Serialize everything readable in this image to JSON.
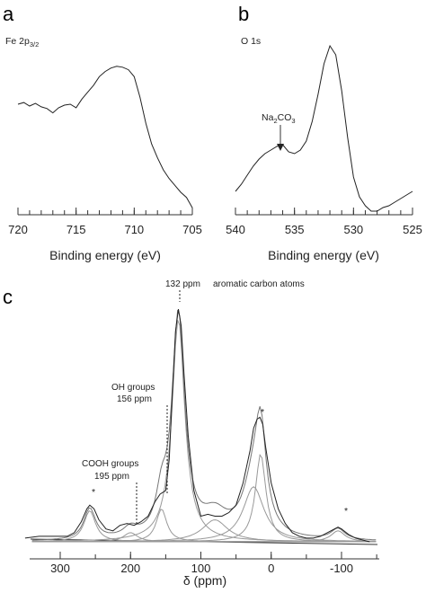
{
  "chart_data": [
    {
      "panel": "a",
      "type": "line",
      "label": "Fe 2p",
      "label_sub": "3/2",
      "xlabel": "Binding energy (eV)",
      "xlim": [
        720,
        705
      ],
      "x_ticks": [
        720,
        715,
        710,
        705
      ],
      "series": [
        {
          "x": [
            720,
            719.5,
            719,
            718.5,
            718,
            717.5,
            717,
            716.5,
            716,
            715.5,
            715,
            714.5,
            714,
            713.5,
            713,
            712.5,
            712,
            711.5,
            711,
            710.5,
            710,
            709.5,
            709,
            708.5,
            708,
            707.5,
            707,
            706.5,
            706,
            705.5,
            705
          ],
          "y": [
            63,
            64,
            62,
            63.5,
            61.5,
            60.5,
            58,
            61,
            62.5,
            63,
            61,
            66,
            70,
            74,
            79,
            82,
            84,
            85,
            84.5,
            83,
            79,
            67,
            52,
            40,
            32,
            25,
            20,
            16,
            12,
            9,
            3
          ]
        }
      ]
    },
    {
      "panel": "b",
      "type": "line",
      "label": "O 1s",
      "xlabel": "Binding energy (eV)",
      "xlim": [
        540,
        525
      ],
      "x_ticks": [
        540,
        535,
        530,
        525
      ],
      "annotations": [
        {
          "text": "Na",
          "sub": "2",
          "text2": "CO",
          "sub2": "3",
          "x": 536
        }
      ],
      "series": [
        {
          "x": [
            540,
            539.5,
            539,
            538.5,
            538,
            537.5,
            537,
            536.5,
            536,
            535.5,
            535,
            534.5,
            534,
            533.5,
            533,
            532.5,
            532,
            531.5,
            531,
            530.5,
            530,
            529.5,
            529,
            528.5,
            528,
            527.5,
            527,
            526.5,
            526,
            525.5,
            525
          ],
          "y": [
            12,
            16,
            21,
            26,
            30,
            33,
            35,
            37,
            38,
            34,
            33,
            35,
            40,
            51,
            66,
            83,
            93,
            88,
            68,
            42,
            20,
            9,
            4,
            1,
            1,
            3,
            4,
            6,
            8,
            10,
            12
          ]
        }
      ]
    },
    {
      "panel": "c",
      "type": "line",
      "xlabel": "δ (ppm)",
      "xlim": [
        350,
        -150
      ],
      "x_ticks": [
        300,
        200,
        100,
        0,
        -100
      ],
      "annotations": {
        "peak_132": "132 ppm",
        "aromatic": "aromatic carbon atoms",
        "oh_groups": "OH groups",
        "oh_ppm": "156 ppm",
        "cooh_groups": "COOH groups",
        "cooh_ppm": "195 ppm",
        "asterisks": [
          "*",
          "*",
          "*"
        ],
        "asterisk_x": [
          258,
          16,
          -95
        ]
      },
      "series": [
        {
          "x": [
            350,
            330,
            310,
            290,
            280,
            270,
            262,
            258,
            252,
            245,
            235,
            225,
            215,
            205,
            195,
            185,
            175,
            165,
            158,
            150,
            145,
            140,
            136,
            132,
            128,
            124,
            118,
            110,
            100,
            90,
            80,
            70,
            60,
            50,
            40,
            30,
            25,
            20,
            16,
            12,
            8,
            0,
            -10,
            -20,
            -30,
            -40,
            -50,
            -60,
            -70,
            -80,
            -90,
            -95,
            -100,
            -110,
            -120,
            -130,
            -140
          ],
          "y": [
            2,
            3,
            3,
            3,
            5,
            11,
            18,
            20,
            18,
            12,
            7,
            6,
            9,
            10,
            9,
            11,
            14,
            22,
            26,
            28,
            45,
            85,
            115,
            127,
            118,
            92,
            58,
            28,
            14,
            15,
            14,
            14,
            16,
            20,
            32,
            50,
            62,
            67,
            68,
            64,
            52,
            32,
            18,
            10,
            5,
            3,
            2,
            2,
            3,
            5,
            7,
            8,
            7,
            4,
            2,
            1,
            0
          ]
        }
      ]
    }
  ]
}
